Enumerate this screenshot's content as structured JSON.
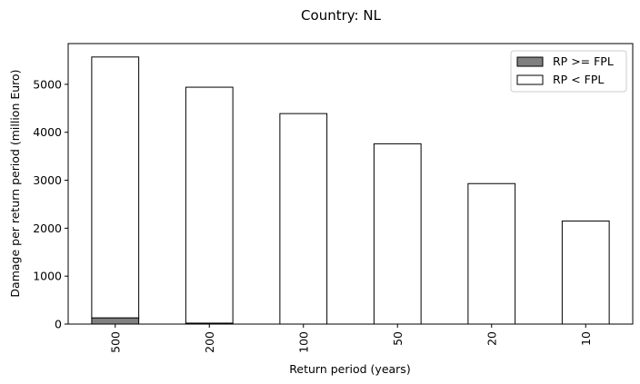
{
  "chart_data": {
    "type": "bar",
    "stacked": true,
    "title": "Country: NL",
    "xlabel": "Return period (years)",
    "ylabel": "Damage per return period (million Euro)",
    "categories": [
      "500",
      "200",
      "100",
      "50",
      "20",
      "10"
    ],
    "series": [
      {
        "name": "RP >= FPL",
        "color": "#808080",
        "values": [
          130,
          20,
          0,
          0,
          0,
          0
        ]
      },
      {
        "name": "RP < FPL",
        "color": "#ffffff",
        "values": [
          5440,
          4920,
          4390,
          3760,
          2930,
          2150
        ]
      }
    ],
    "ylim": [
      0,
      5850
    ],
    "yticks": [
      0,
      1000,
      2000,
      3000,
      4000,
      5000
    ],
    "grid": false,
    "legend_position": "top-right"
  }
}
